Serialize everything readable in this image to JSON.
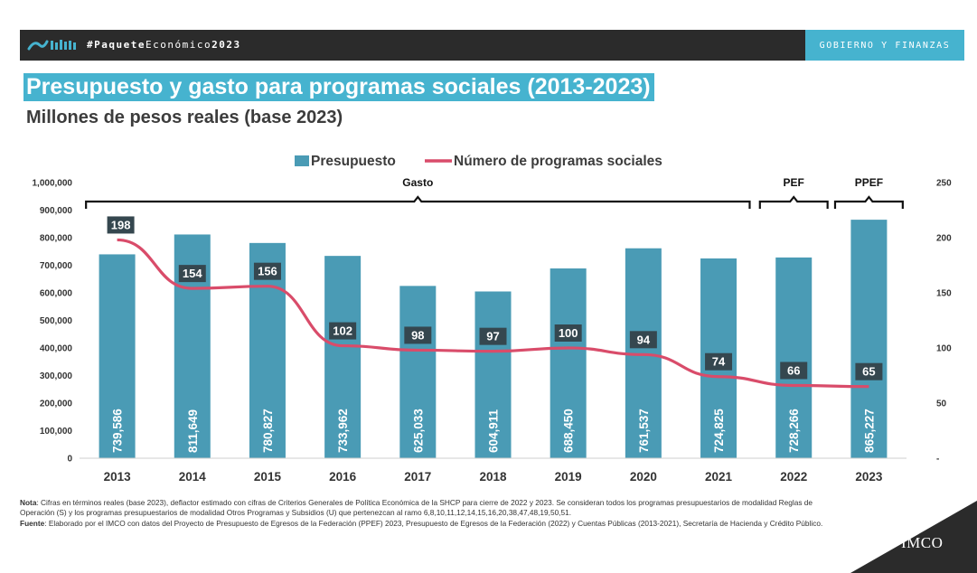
{
  "header": {
    "hashtag_prefix": "#Paquete",
    "hashtag_mid": "Económico",
    "hashtag_year": "2023",
    "section": "GOBIERNO Y FINANZAS"
  },
  "title": "Presupuesto y gasto para programas sociales (2013-2023)",
  "subtitle": "Millones de pesos reales (base 2023)",
  "chart_data": {
    "type": "bar",
    "categories": [
      "2013",
      "2014",
      "2015",
      "2016",
      "2017",
      "2018",
      "2019",
      "2020",
      "2021",
      "2022",
      "2023"
    ],
    "series": [
      {
        "name": "Presupuesto",
        "type": "bar",
        "axis": "left",
        "values": [
          739586,
          811649,
          780827,
          733962,
          625033,
          604911,
          688450,
          761537,
          724825,
          728266,
          865227
        ],
        "labels": [
          "739,586",
          "811,649",
          "780,827",
          "733,962",
          "625,033",
          "604,911",
          "688,450",
          "761,537",
          "724,825",
          "728,266",
          "865,227"
        ]
      },
      {
        "name": "Número de programas sociales",
        "type": "line",
        "axis": "right",
        "values": [
          198,
          154,
          156,
          102,
          98,
          97,
          100,
          94,
          74,
          66,
          65
        ]
      }
    ],
    "y_left": {
      "range": [
        0,
        1000000
      ],
      "ticks": [
        "0",
        "100,000",
        "200,000",
        "300,000",
        "400,000",
        "500,000",
        "600,000",
        "700,000",
        "800,000",
        "900,000",
        "1,000,000"
      ]
    },
    "y_right": {
      "range": [
        0,
        250
      ],
      "ticks": [
        "-",
        "50",
        "100",
        "150",
        "200",
        "250"
      ]
    },
    "brackets": [
      {
        "label": "Gasto",
        "from": "2013",
        "to": "2021"
      },
      {
        "label": "PEF",
        "from": "2022",
        "to": "2022"
      },
      {
        "label": "PPEF",
        "from": "2023",
        "to": "2023"
      }
    ],
    "legend_position": "top-center",
    "grid": false,
    "colors": {
      "bar": "#4a9bb5",
      "line": "#d94c6a",
      "label_box": "#35474f"
    }
  },
  "footnote": {
    "nota_label": "Nota",
    "nota_text": ": Cifras en términos reales (base 2023), deflactor estimado con cifras de Criterios Generales de Política Económica de la SHCP para cierre de 2022 y 2023. Se consideran todos los programas presupuestarios de modalidad Reglas de Operación (S) y los programas presupuestarios de modalidad Otros Programas y Subsidios (U) que pertenezcan al ramo 6,8,10,11,12,14,15,16,20,38,47,48,19,50,51.",
    "fuente_label": "Fuente",
    "fuente_text": ": Elaborado por el IMCO con datos del Proyecto de Presupuesto de Egresos de la Federación (PPEF) 2023, Presupuesto de Egresos de la Federación (2022) y Cuentas Públicas (2013-2021), Secretaría de Hacienda y Crédito Público."
  },
  "brand": "IMCO"
}
